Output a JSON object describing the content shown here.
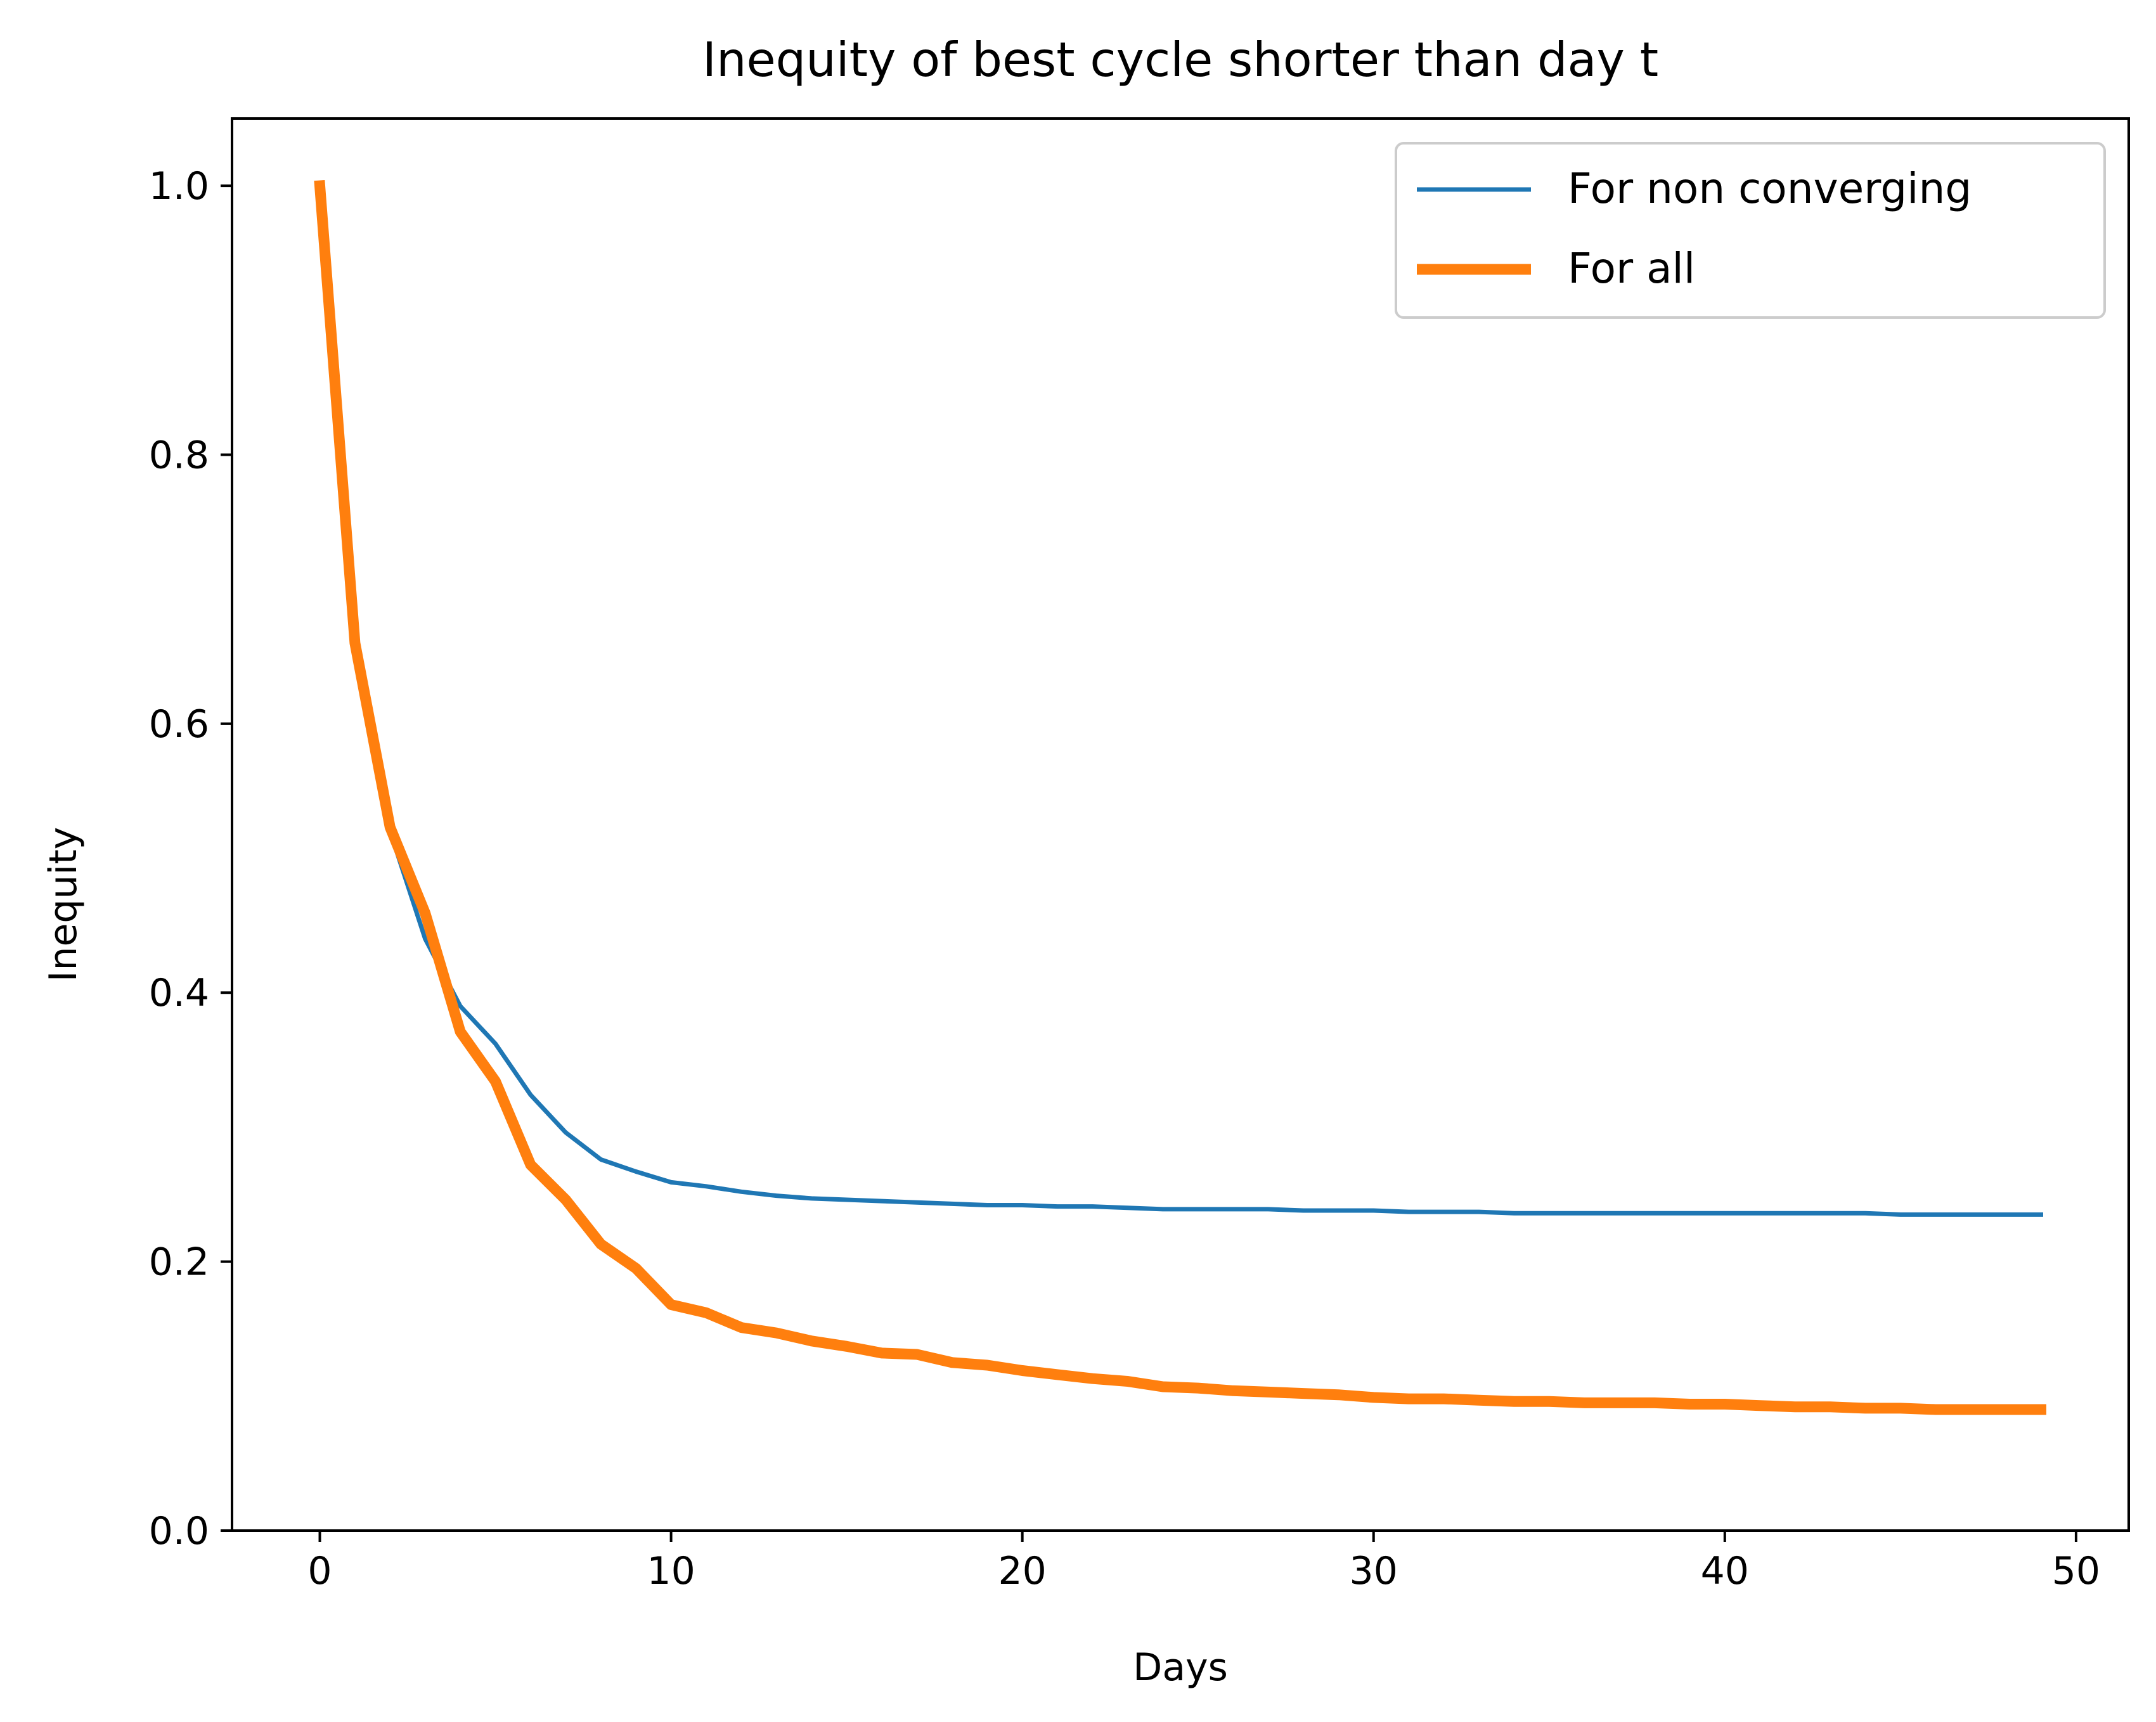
{
  "chart_data": {
    "type": "line",
    "title": "Inequity of best cycle shorter than day t",
    "xlabel": "Days",
    "ylabel": "Inequity",
    "xlim": [
      -2.5,
      51.5
    ],
    "ylim": [
      0.0,
      1.05
    ],
    "xticks": [
      0,
      10,
      20,
      30,
      40,
      50
    ],
    "xtick_labels": [
      "0",
      "10",
      "20",
      "30",
      "40",
      "50"
    ],
    "yticks": [
      0.0,
      0.2,
      0.4,
      0.6,
      0.8,
      1.0
    ],
    "ytick_labels": [
      "0.0",
      "0.2",
      "0.4",
      "0.6",
      "0.8",
      "1.0"
    ],
    "grid": false,
    "legend_position": "top-right",
    "x": [
      0,
      1,
      2,
      3,
      4,
      5,
      6,
      7,
      8,
      9,
      10,
      11,
      12,
      13,
      14,
      15,
      16,
      17,
      18,
      19,
      20,
      21,
      22,
      23,
      24,
      25,
      26,
      27,
      28,
      29,
      30,
      31,
      32,
      33,
      34,
      35,
      36,
      37,
      38,
      39,
      40,
      41,
      42,
      43,
      44,
      45,
      46,
      47,
      48,
      49
    ],
    "series": [
      {
        "name": "For non converging",
        "color": "#1f77b4",
        "weight": "thin",
        "values": [
          1.0,
          0.66,
          0.52,
          0.44,
          0.39,
          0.362,
          0.324,
          0.296,
          0.276,
          0.267,
          0.259,
          0.256,
          0.252,
          0.249,
          0.247,
          0.246,
          0.245,
          0.244,
          0.243,
          0.242,
          0.242,
          0.241,
          0.241,
          0.24,
          0.239,
          0.239,
          0.239,
          0.239,
          0.238,
          0.238,
          0.238,
          0.237,
          0.237,
          0.237,
          0.236,
          0.236,
          0.236,
          0.236,
          0.236,
          0.236,
          0.236,
          0.236,
          0.236,
          0.236,
          0.236,
          0.235,
          0.235,
          0.235,
          0.235,
          0.235
        ]
      },
      {
        "name": "For all",
        "color": "#ff7f0e",
        "weight": "thick",
        "values": [
          1.0,
          0.66,
          0.523,
          0.459,
          0.371,
          0.334,
          0.272,
          0.246,
          0.213,
          0.195,
          0.168,
          0.162,
          0.151,
          0.147,
          0.141,
          0.137,
          0.132,
          0.131,
          0.125,
          0.123,
          0.119,
          0.116,
          0.113,
          0.111,
          0.107,
          0.106,
          0.104,
          0.103,
          0.102,
          0.101,
          0.099,
          0.098,
          0.098,
          0.097,
          0.096,
          0.096,
          0.095,
          0.095,
          0.095,
          0.094,
          0.094,
          0.093,
          0.092,
          0.092,
          0.091,
          0.091,
          0.09,
          0.09,
          0.09,
          0.09
        ]
      }
    ]
  }
}
